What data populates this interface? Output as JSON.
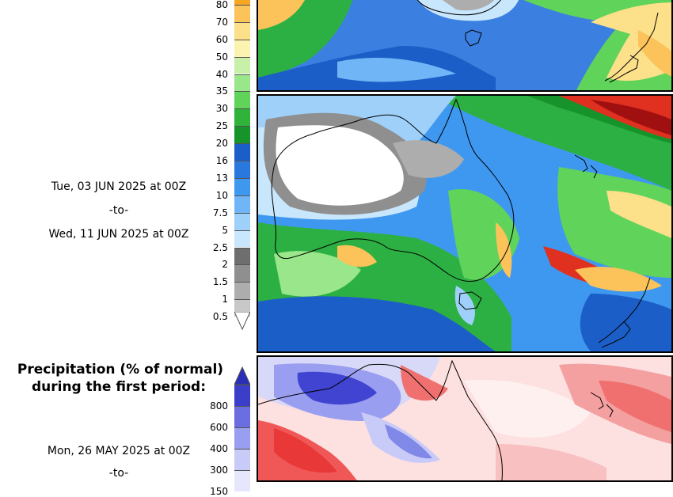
{
  "panel1": {
    "colorbar": {
      "labels": [
        "80",
        "70",
        "60",
        "50",
        "40",
        "35",
        "30",
        "25",
        "20",
        "16",
        "13",
        "10",
        "7.5",
        "5",
        "2.5",
        "2",
        "1.5",
        "1",
        "0.5"
      ],
      "colors": [
        "#f5a623",
        "#fbc35a",
        "#fde08a",
        "#fdf3b0",
        "#c8f0a8",
        "#9ae68a",
        "#5fd35a",
        "#2fb33a",
        "#16932b",
        "#1c5ec8",
        "#2878de",
        "#3f98f0",
        "#70b6f6",
        "#9ed0fa",
        "#c8e6fc",
        "#6e6e6e",
        "#8f8f8f",
        "#adadad",
        "#c8c8c8"
      ]
    }
  },
  "panel2": {
    "date_from": "Tue, 03 JUN 2025 at 00Z",
    "date_sep": "-to-",
    "date_to": "Wed, 11 JUN 2025 at 00Z"
  },
  "panel3": {
    "title_line1": "Precipitation (% of normal)",
    "title_line2": "during the first period:",
    "colorbar": {
      "labels": [
        "800",
        "600",
        "400",
        "300",
        "150"
      ],
      "colors": [
        "#3a3ec8",
        "#6a6ee0",
        "#9a9ef0",
        "#c8caf8",
        "#e6e6fc"
      ]
    },
    "date_from": "Mon, 26 MAY 2025 at 00Z",
    "date_sep": "-to-"
  }
}
